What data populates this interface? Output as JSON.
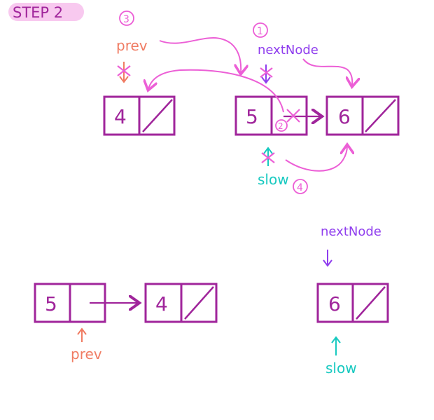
{
  "step_label": "STEP 2",
  "colors": {
    "node": "#a0259b",
    "pink": "#ec5fd6",
    "prev": "#f07c63",
    "next_node": "#8f3dee",
    "slow": "#17c9c0",
    "step_bg": "#f8c9ef"
  },
  "top": {
    "nodes": [
      {
        "value": "4"
      },
      {
        "value": "5"
      },
      {
        "value": "6"
      }
    ],
    "labels": {
      "prev": "prev",
      "next_node": "nextNode",
      "slow": "slow"
    },
    "order_marks": {
      "next_node": "1",
      "link": "2",
      "prev": "3",
      "slow": "4"
    }
  },
  "bottom": {
    "nodes": [
      {
        "value": "5"
      },
      {
        "value": "4"
      },
      {
        "value": "6"
      }
    ],
    "labels": {
      "prev": "prev",
      "next_node": "nextNode",
      "slow": "slow"
    }
  }
}
